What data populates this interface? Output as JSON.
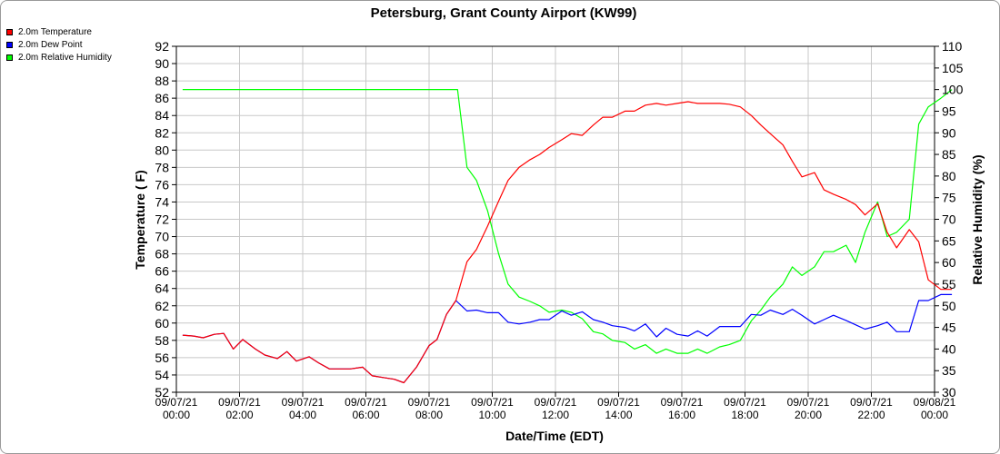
{
  "chart_data": {
    "type": "line",
    "title": "Petersburg, Grant County Airport (KW99)",
    "xlabel": "Date/Time (EDT)",
    "ylabel": "Temperature ( F)",
    "y2label": "Relative Humidity (%)",
    "x_range": [
      0,
      24
    ],
    "ylim": [
      52,
      92
    ],
    "y2lim": [
      30,
      110
    ],
    "grid": true,
    "legend_position": "top-left",
    "y_ticks": [
      52,
      54,
      56,
      58,
      60,
      62,
      64,
      66,
      68,
      70,
      72,
      74,
      76,
      78,
      80,
      82,
      84,
      86,
      88,
      90,
      92
    ],
    "y2_ticks": [
      30,
      35,
      40,
      45,
      50,
      55,
      60,
      65,
      70,
      75,
      80,
      85,
      90,
      95,
      100,
      105,
      110
    ],
    "x_ticks": [
      {
        "x": 0,
        "date": "09/07/21",
        "time": "00:00"
      },
      {
        "x": 2,
        "date": "09/07/21",
        "time": "02:00"
      },
      {
        "x": 4,
        "date": "09/07/21",
        "time": "04:00"
      },
      {
        "x": 6,
        "date": "09/07/21",
        "time": "06:00"
      },
      {
        "x": 8,
        "date": "09/07/21",
        "time": "08:00"
      },
      {
        "x": 10,
        "date": "09/07/21",
        "time": "10:00"
      },
      {
        "x": 12,
        "date": "09/07/21",
        "time": "12:00"
      },
      {
        "x": 14,
        "date": "09/07/21",
        "time": "14:00"
      },
      {
        "x": 16,
        "date": "09/07/21",
        "time": "16:00"
      },
      {
        "x": 18,
        "date": "09/07/21",
        "time": "18:00"
      },
      {
        "x": 20,
        "date": "09/07/21",
        "time": "20:00"
      },
      {
        "x": 22,
        "date": "09/07/21",
        "time": "22:00"
      },
      {
        "x": 24,
        "date": "09/08/21",
        "time": "00:00"
      }
    ],
    "series": [
      {
        "name": "2.0m Temperature",
        "color": "#ff0000",
        "axis": "left",
        "points": [
          [
            0.2,
            58.6
          ],
          [
            0.55,
            58.5
          ],
          [
            0.85,
            58.3
          ],
          [
            1.2,
            58.7
          ],
          [
            1.5,
            58.8
          ],
          [
            1.8,
            57.0
          ],
          [
            2.1,
            58.1
          ],
          [
            2.5,
            57.0
          ],
          [
            2.8,
            56.3
          ],
          [
            3.2,
            55.9
          ],
          [
            3.5,
            56.7
          ],
          [
            3.8,
            55.6
          ],
          [
            4.2,
            56.1
          ],
          [
            4.5,
            55.4
          ],
          [
            4.85,
            54.7
          ],
          [
            5.2,
            54.7
          ],
          [
            5.5,
            54.7
          ],
          [
            5.9,
            54.9
          ],
          [
            6.2,
            53.9
          ],
          [
            6.55,
            53.7
          ],
          [
            6.9,
            53.5
          ],
          [
            7.2,
            53.1
          ],
          [
            7.6,
            54.9
          ],
          [
            8.0,
            57.4
          ],
          [
            8.25,
            58.1
          ],
          [
            8.55,
            61.0
          ],
          [
            8.85,
            62.6
          ],
          [
            9.2,
            67.1
          ],
          [
            9.5,
            68.5
          ],
          [
            9.85,
            71.2
          ],
          [
            10.2,
            74.1
          ],
          [
            10.5,
            76.5
          ],
          [
            10.85,
            78.0
          ],
          [
            11.2,
            78.9
          ],
          [
            11.5,
            79.5
          ],
          [
            11.8,
            80.3
          ],
          [
            12.2,
            81.2
          ],
          [
            12.5,
            81.9
          ],
          [
            12.85,
            81.7
          ],
          [
            13.2,
            82.9
          ],
          [
            13.5,
            83.8
          ],
          [
            13.8,
            83.8
          ],
          [
            14.2,
            84.5
          ],
          [
            14.5,
            84.5
          ],
          [
            14.85,
            85.2
          ],
          [
            15.2,
            85.4
          ],
          [
            15.5,
            85.2
          ],
          [
            15.85,
            85.4
          ],
          [
            16.2,
            85.6
          ],
          [
            16.5,
            85.4
          ],
          [
            16.8,
            85.4
          ],
          [
            17.2,
            85.4
          ],
          [
            17.5,
            85.3
          ],
          [
            17.85,
            85.0
          ],
          [
            18.2,
            84.0
          ],
          [
            18.5,
            82.9
          ],
          [
            18.8,
            81.9
          ],
          [
            19.2,
            80.6
          ],
          [
            19.5,
            78.7
          ],
          [
            19.8,
            76.9
          ],
          [
            20.2,
            77.4
          ],
          [
            20.5,
            75.4
          ],
          [
            20.8,
            74.9
          ],
          [
            21.2,
            74.3
          ],
          [
            21.5,
            73.7
          ],
          [
            21.8,
            72.5
          ],
          [
            22.2,
            73.8
          ],
          [
            22.5,
            70.5
          ],
          [
            22.8,
            68.7
          ],
          [
            23.2,
            70.8
          ],
          [
            23.5,
            69.4
          ],
          [
            23.8,
            65.0
          ],
          [
            24.2,
            63.9
          ],
          [
            24.55,
            63.9
          ]
        ]
      },
      {
        "name": "2.0m Dew Point",
        "color": "#0000ff",
        "axis": "left",
        "points": [
          [
            0.2,
            58.6
          ],
          [
            0.55,
            58.5
          ],
          [
            0.85,
            58.3
          ],
          [
            1.2,
            58.7
          ],
          [
            1.5,
            58.8
          ],
          [
            1.8,
            57.0
          ],
          [
            2.1,
            58.1
          ],
          [
            2.5,
            57.0
          ],
          [
            2.8,
            56.3
          ],
          [
            3.2,
            55.9
          ],
          [
            3.5,
            56.7
          ],
          [
            3.8,
            55.6
          ],
          [
            4.2,
            56.1
          ],
          [
            4.5,
            55.4
          ],
          [
            4.85,
            54.7
          ],
          [
            5.2,
            54.7
          ],
          [
            5.5,
            54.7
          ],
          [
            5.9,
            54.9
          ],
          [
            6.2,
            53.9
          ],
          [
            6.55,
            53.7
          ],
          [
            6.9,
            53.5
          ],
          [
            7.2,
            53.1
          ],
          [
            7.6,
            54.9
          ],
          [
            8.0,
            57.4
          ],
          [
            8.25,
            58.1
          ],
          [
            8.55,
            61.0
          ],
          [
            8.85,
            62.6
          ],
          [
            9.2,
            61.4
          ],
          [
            9.5,
            61.5
          ],
          [
            9.85,
            61.2
          ],
          [
            10.2,
            61.2
          ],
          [
            10.5,
            60.1
          ],
          [
            10.85,
            59.9
          ],
          [
            11.2,
            60.1
          ],
          [
            11.5,
            60.4
          ],
          [
            11.8,
            60.4
          ],
          [
            12.2,
            61.4
          ],
          [
            12.5,
            60.9
          ],
          [
            12.85,
            61.3
          ],
          [
            13.2,
            60.4
          ],
          [
            13.5,
            60.1
          ],
          [
            13.8,
            59.7
          ],
          [
            14.2,
            59.5
          ],
          [
            14.5,
            59.1
          ],
          [
            14.85,
            59.9
          ],
          [
            15.2,
            58.4
          ],
          [
            15.5,
            59.4
          ],
          [
            15.85,
            58.7
          ],
          [
            16.2,
            58.5
          ],
          [
            16.5,
            59.1
          ],
          [
            16.8,
            58.5
          ],
          [
            17.2,
            59.6
          ],
          [
            17.5,
            59.6
          ],
          [
            17.85,
            59.6
          ],
          [
            18.2,
            61.0
          ],
          [
            18.5,
            60.9
          ],
          [
            18.8,
            61.5
          ],
          [
            19.2,
            61.0
          ],
          [
            19.5,
            61.6
          ],
          [
            19.8,
            60.9
          ],
          [
            20.2,
            59.9
          ],
          [
            20.5,
            60.4
          ],
          [
            20.8,
            60.9
          ],
          [
            21.2,
            60.3
          ],
          [
            21.5,
            59.8
          ],
          [
            21.8,
            59.3
          ],
          [
            22.2,
            59.7
          ],
          [
            22.5,
            60.1
          ],
          [
            22.8,
            59.0
          ],
          [
            23.2,
            59.0
          ],
          [
            23.5,
            62.6
          ],
          [
            23.8,
            62.6
          ],
          [
            24.2,
            63.3
          ],
          [
            24.55,
            63.3
          ]
        ]
      },
      {
        "name": "2.0m Relative Humidity",
        "color": "#00ff00",
        "axis": "right",
        "points": [
          [
            0.2,
            100
          ],
          [
            1.0,
            100
          ],
          [
            2.0,
            100
          ],
          [
            3.0,
            100
          ],
          [
            4.0,
            100
          ],
          [
            5.0,
            100
          ],
          [
            6.0,
            100
          ],
          [
            7.0,
            100
          ],
          [
            8.0,
            100
          ],
          [
            8.6,
            100
          ],
          [
            8.9,
            100
          ],
          [
            9.2,
            82
          ],
          [
            9.5,
            79
          ],
          [
            9.85,
            72
          ],
          [
            10.2,
            62
          ],
          [
            10.5,
            55
          ],
          [
            10.85,
            52
          ],
          [
            11.2,
            51
          ],
          [
            11.5,
            50
          ],
          [
            11.8,
            48.5
          ],
          [
            12.2,
            49
          ],
          [
            12.5,
            48.5
          ],
          [
            12.85,
            47
          ],
          [
            13.2,
            44
          ],
          [
            13.5,
            43.5
          ],
          [
            13.8,
            42
          ],
          [
            14.2,
            41.5
          ],
          [
            14.5,
            40
          ],
          [
            14.85,
            41
          ],
          [
            15.2,
            39
          ],
          [
            15.5,
            40
          ],
          [
            15.85,
            39
          ],
          [
            16.2,
            39
          ],
          [
            16.5,
            40
          ],
          [
            16.8,
            39
          ],
          [
            17.2,
            40.5
          ],
          [
            17.5,
            41
          ],
          [
            17.85,
            42
          ],
          [
            18.2,
            46.5
          ],
          [
            18.5,
            49
          ],
          [
            18.8,
            52
          ],
          [
            19.2,
            55
          ],
          [
            19.5,
            59
          ],
          [
            19.8,
            57
          ],
          [
            20.2,
            59
          ],
          [
            20.5,
            62.5
          ],
          [
            20.8,
            62.5
          ],
          [
            21.2,
            64
          ],
          [
            21.5,
            60
          ],
          [
            21.8,
            67
          ],
          [
            22.2,
            74
          ],
          [
            22.5,
            66
          ],
          [
            22.8,
            67
          ],
          [
            23.2,
            70
          ],
          [
            23.5,
            92
          ],
          [
            23.8,
            96
          ],
          [
            24.2,
            98
          ],
          [
            24.55,
            100
          ]
        ]
      }
    ]
  }
}
